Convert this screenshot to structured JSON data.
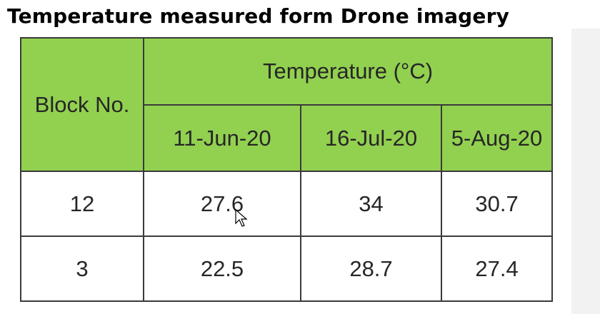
{
  "title": "Temperature measured form Drone imagery",
  "table": {
    "header": {
      "block": "Block No.",
      "group": "Temperature (°C)",
      "dates": [
        "11-Jun-20",
        "16-Jul-20",
        "5-Aug-20"
      ]
    },
    "rows": [
      [
        12,
        27.6,
        34,
        30.7
      ],
      [
        3,
        22.5,
        28.7,
        27.4
      ]
    ]
  }
}
